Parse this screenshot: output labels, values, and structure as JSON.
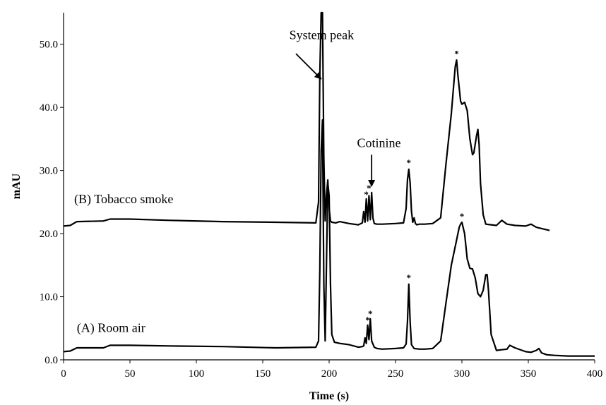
{
  "chart_data": {
    "type": "line",
    "title": "",
    "xlabel": "Time (s)",
    "ylabel": "mAU",
    "xlim": [
      0,
      400
    ],
    "ylim": [
      0,
      55
    ],
    "x_ticks": [
      0,
      50,
      100,
      150,
      200,
      250,
      300,
      350,
      400
    ],
    "x_tick_labels": [
      "0",
      "50",
      "100",
      "150",
      "200",
      "250",
      "300",
      "350",
      "400"
    ],
    "y_ticks": [
      0,
      10,
      20,
      30,
      40,
      50
    ],
    "y_tick_labels": [
      "0.0",
      "10.0",
      "20.0",
      "30.0",
      "40.0",
      "50.0"
    ],
    "grid": false,
    "series": [
      {
        "name": "(B) Tobacco smoke",
        "x": [
          0,
          5,
          10,
          30,
          35,
          50,
          80,
          120,
          160,
          190,
          192,
          193,
          194,
          195,
          196,
          197,
          198,
          199,
          200,
          201,
          202,
          205,
          208,
          215,
          222,
          225,
          226,
          227,
          228,
          229,
          230,
          231,
          232,
          233,
          234,
          236,
          240,
          250,
          256,
          258,
          259,
          260,
          261,
          262,
          263,
          264,
          265,
          266,
          268,
          272,
          278,
          284,
          288,
          292,
          294,
          295,
          296,
          297,
          299,
          300,
          302,
          304,
          306,
          308,
          309,
          311,
          312,
          313,
          314,
          316,
          318,
          322,
          326,
          330,
          334,
          340,
          348,
          352,
          356,
          360,
          364,
          366
        ],
        "y": [
          21.2,
          21.3,
          21.9,
          22.0,
          22.3,
          22.3,
          22.1,
          21.9,
          21.8,
          21.7,
          25,
          45,
          55,
          55,
          32,
          22,
          26,
          28.5,
          24,
          22,
          21.8,
          21.7,
          21.9,
          21.6,
          21.4,
          21.7,
          23.5,
          21.8,
          25.5,
          22,
          26,
          22.2,
          26.5,
          22.5,
          21.6,
          21.5,
          21.5,
          21.6,
          21.7,
          24,
          28.5,
          30.2,
          28,
          23.5,
          21.8,
          22.5,
          21.6,
          21.4,
          21.5,
          21.5,
          21.6,
          22.5,
          31,
          39,
          44,
          46.5,
          47.5,
          45,
          41,
          40.5,
          40.8,
          39.5,
          35,
          32.5,
          32.8,
          35.5,
          36.5,
          34,
          28,
          23,
          21.5,
          21.4,
          21.3,
          22.1,
          21.5,
          21.3,
          21.2,
          21.5,
          21.0,
          20.8,
          20.6,
          20.5
        ]
      },
      {
        "name": "(A) Room air",
        "x": [
          0,
          5,
          10,
          30,
          35,
          50,
          80,
          120,
          160,
          190,
          192,
          193,
          194,
          195,
          196,
          197,
          198,
          199,
          200,
          201,
          202,
          204,
          208,
          215,
          222,
          225,
          226,
          227,
          228,
          229,
          230,
          231,
          232,
          234,
          236,
          240,
          250,
          256,
          258,
          259,
          260,
          261,
          262,
          264,
          268,
          272,
          278,
          284,
          288,
          292,
          296,
          298,
          299,
          300,
          302,
          304,
          306,
          308,
          310,
          312,
          314,
          316,
          318,
          319,
          320,
          322,
          326,
          330,
          334,
          336,
          340,
          348,
          352,
          356,
          358,
          360,
          364,
          370,
          380,
          390,
          400
        ],
        "y": [
          1.3,
          1.4,
          1.9,
          1.9,
          2.3,
          2.3,
          2.2,
          2.1,
          1.9,
          2.0,
          3,
          14,
          33,
          38,
          12,
          3,
          15,
          28,
          26,
          12,
          4,
          2.8,
          2.6,
          2.4,
          2.0,
          2.1,
          2.2,
          3.5,
          2.6,
          5.5,
          3.2,
          6.5,
          3.0,
          2.0,
          1.8,
          1.7,
          1.8,
          1.9,
          2.5,
          6,
          12,
          6,
          2.4,
          1.8,
          1.7,
          1.7,
          1.8,
          3,
          9,
          15,
          19,
          21,
          21.5,
          21.8,
          20,
          16,
          14.5,
          14.4,
          13,
          10.5,
          10,
          11,
          13.5,
          13.5,
          11,
          4,
          1.5,
          1.6,
          1.7,
          2.3,
          1.9,
          1.3,
          1.2,
          1.5,
          1.8,
          1.1,
          0.8,
          0.7,
          0.6,
          0.6,
          0.6
        ]
      }
    ],
    "markers": [
      {
        "text": "*",
        "x": 228,
        "y": 25.5
      },
      {
        "text": "*",
        "x": 230,
        "y": 26.5
      },
      {
        "text": "*",
        "x": 260,
        "y": 30.5
      },
      {
        "text": "*",
        "x": 296,
        "y": 47.8
      },
      {
        "text": "*",
        "x": 229,
        "y": 5.6
      },
      {
        "text": "*",
        "x": 231,
        "y": 6.6
      },
      {
        "text": "*",
        "x": 260,
        "y": 12.3
      },
      {
        "text": "*",
        "x": 300,
        "y": 22.0
      }
    ],
    "annotations": [
      {
        "text": "System peak",
        "x": 170,
        "y": 50.8,
        "arrow_to": [
          194,
          44.5
        ],
        "arrow_from": [
          175,
          48.5
        ]
      },
      {
        "text": "Cotinine",
        "x": 221,
        "y": 33.7,
        "arrow_to": [
          232,
          27.5
        ],
        "arrow_from": [
          232,
          32.5
        ]
      }
    ],
    "trace_labels": [
      {
        "text": "(B) Tobacco smoke",
        "x": 8,
        "y": 24.8
      },
      {
        "text": "(A) Room air",
        "x": 10,
        "y": 4.4
      }
    ]
  }
}
